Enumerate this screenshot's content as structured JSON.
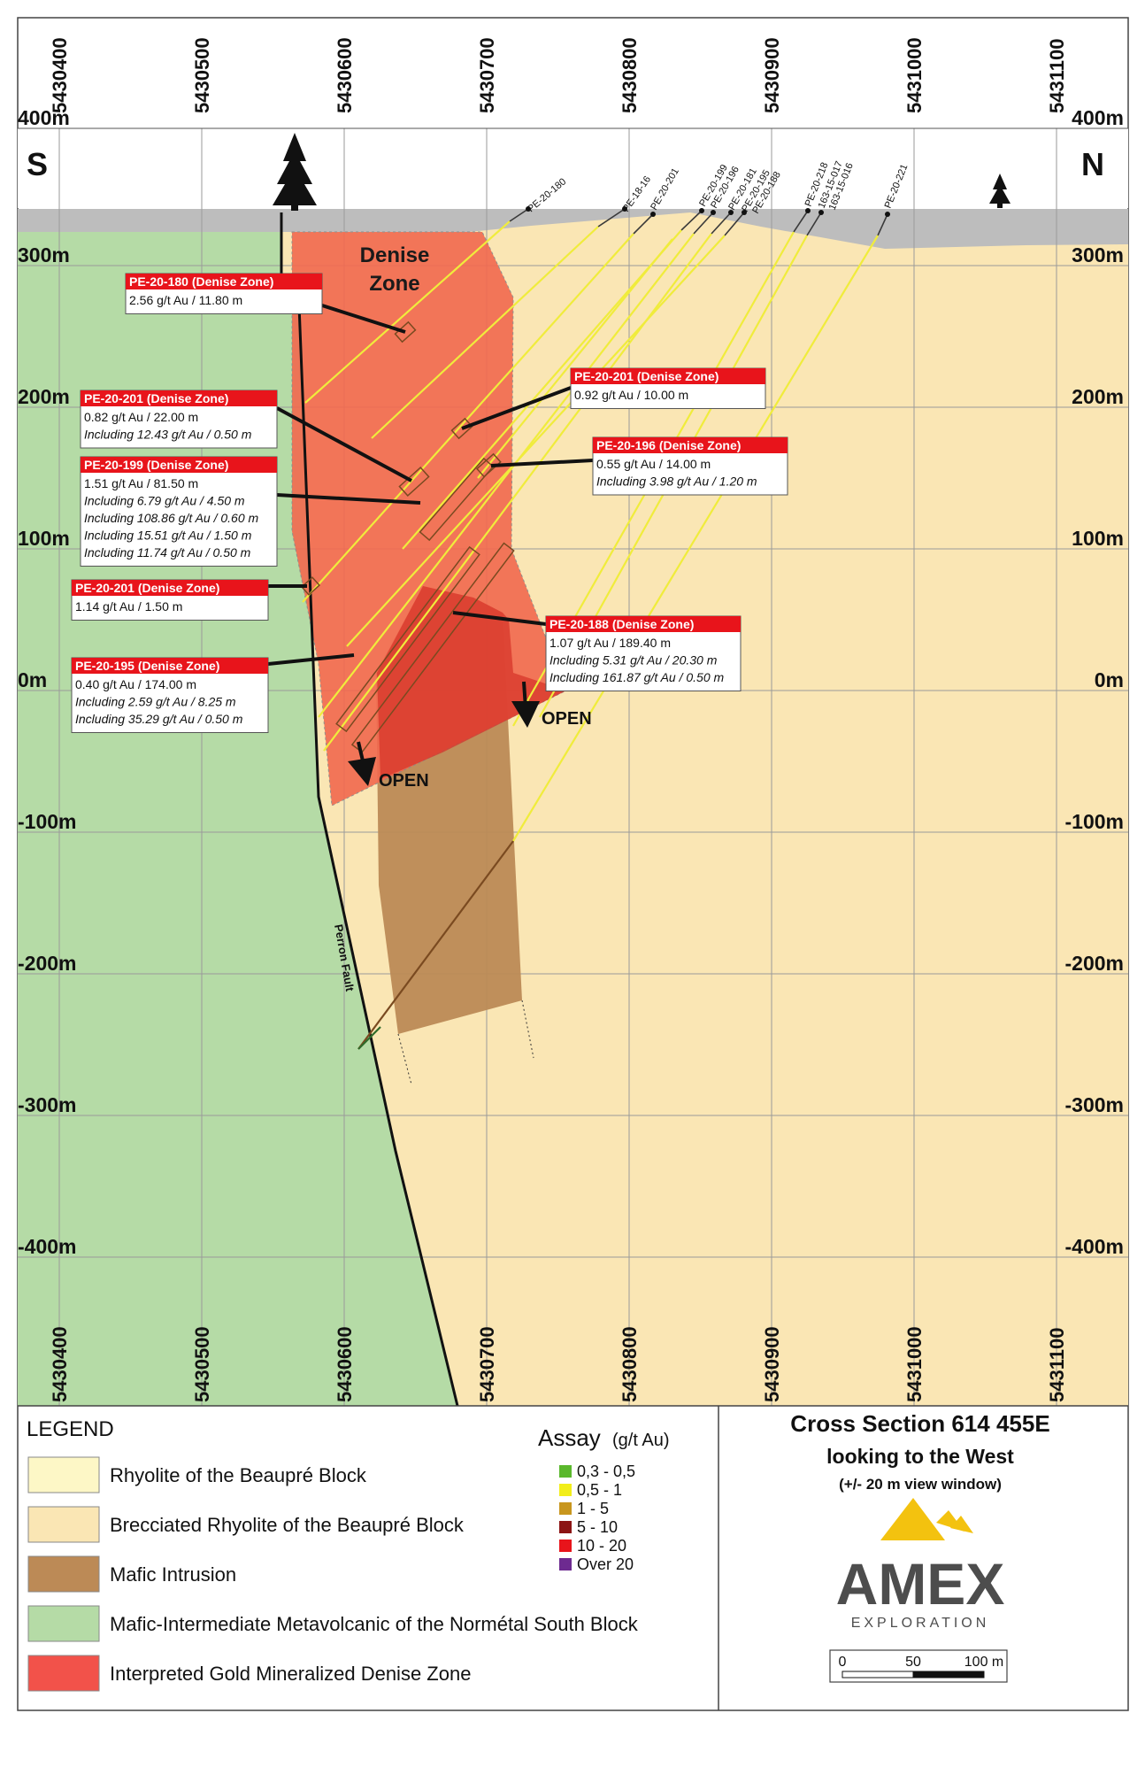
{
  "header": {
    "left_dir": "S",
    "right_dir": "N"
  },
  "eastings": [
    "5430400",
    "5430500",
    "5430600",
    "5430700",
    "5430800",
    "5430900",
    "5431000",
    "5431100"
  ],
  "elevations": [
    "400m",
    "300m",
    "200m",
    "100m",
    "0m",
    "-100m",
    "-200m",
    "-300m",
    "-400m"
  ],
  "zone_label": {
    "line1": "Denise",
    "line2": "Zone"
  },
  "fault_label": "Perron Fault",
  "open_labels": [
    "OPEN",
    "OPEN"
  ],
  "holes": [
    {
      "name": "PE-20-180"
    },
    {
      "name": "PE-18-16"
    },
    {
      "name": "PE-20-201"
    },
    {
      "name": "PE-20-199"
    },
    {
      "name": "PE-20-196"
    },
    {
      "name": "PE-20-181"
    },
    {
      "name": "PE-20-195"
    },
    {
      "name": "PE-20-188"
    },
    {
      "name": "PE-20-218"
    },
    {
      "name": "163-15-017"
    },
    {
      "name": "163-15-016"
    },
    {
      "name": "PE-20-221"
    }
  ],
  "labels": [
    {
      "title": "PE-20-180 (Denise Zone)",
      "lines": [
        {
          "text": "2.56 g/t Au / 11.80 m",
          "inc": false
        }
      ]
    },
    {
      "title": "PE-20-201 (Denise Zone)",
      "lines": [
        {
          "text": "0.82 g/t Au / 22.00 m",
          "inc": false
        },
        {
          "text": "Including 12.43 g/t Au / 0.50 m",
          "inc": true
        }
      ]
    },
    {
      "title": "PE-20-199 (Denise Zone)",
      "lines": [
        {
          "text": "1.51 g/t Au / 81.50 m",
          "inc": false
        },
        {
          "text": "Including 6.79 g/t Au / 4.50 m",
          "inc": true
        },
        {
          "text": "Including 108.86 g/t Au / 0.60 m",
          "inc": true
        },
        {
          "text": "Including 15.51 g/t Au / 1.50 m",
          "inc": true
        },
        {
          "text": "Including 11.74 g/t Au / 0.50 m",
          "inc": true
        }
      ]
    },
    {
      "title": "PE-20-201 (Denise Zone)",
      "lines": [
        {
          "text": "1.14 g/t Au / 1.50 m",
          "inc": false
        }
      ]
    },
    {
      "title": "PE-20-195 (Denise Zone)",
      "lines": [
        {
          "text": "0.40 g/t Au / 174.00 m",
          "inc": false
        },
        {
          "text": "Including 2.59 g/t Au / 8.25 m",
          "inc": true
        },
        {
          "text": "Including 35.29 g/t Au / 0.50 m",
          "inc": true
        }
      ]
    },
    {
      "title": "PE-20-201 (Denise Zone)",
      "lines": [
        {
          "text": "0.92 g/t Au / 10.00 m",
          "inc": false
        }
      ]
    },
    {
      "title": "PE-20-196 (Denise Zone)",
      "lines": [
        {
          "text": "0.55 g/t Au / 14.00 m",
          "inc": false
        },
        {
          "text": "Including 3.98 g/t Au / 1.20 m",
          "inc": true
        }
      ]
    },
    {
      "title": "PE-20-188 (Denise Zone)",
      "lines": [
        {
          "text": "1.07 g/t Au / 189.40 m",
          "inc": false
        },
        {
          "text": "Including 5.31 g/t Au / 20.30 m",
          "inc": true
        },
        {
          "text": "Including 161.87 g/t Au / 0.50 m",
          "inc": true
        }
      ]
    }
  ],
  "legend": {
    "title": "LEGEND",
    "items": [
      {
        "label": "Rhyolite of the Beaupré Block",
        "color": "#fdf7c6"
      },
      {
        "label": "Brecciated Rhyolite of the Beaupré Block",
        "color": "#fae6b4"
      },
      {
        "label": "Mafic Intrusion",
        "color": "#bc8a56"
      },
      {
        "label": "Mafic-Intermediate Metavolcanic of the Normétal South Block",
        "color": "#b5dba6"
      },
      {
        "label": "Interpreted Gold Mineralized Denise Zone",
        "color": "#f2524a"
      }
    ]
  },
  "assay": {
    "title": "Assay",
    "unit": "(g/t Au)",
    "items": [
      {
        "label": "0,3 - 0,5",
        "color": "#5ab82c"
      },
      {
        "label": "0,5 - 1",
        "color": "#f2ee1a"
      },
      {
        "label": "1 - 5",
        "color": "#c8961e"
      },
      {
        "label": "5 - 10",
        "color": "#8c1414"
      },
      {
        "label": "10 - 20",
        "color": "#e8141b"
      },
      {
        "label": "Over 20",
        "color": "#6d2a90"
      }
    ]
  },
  "title_block": {
    "line1": "Cross Section 614 455E",
    "line2": "looking to the West",
    "line3": "(+/- 20 m view window)"
  },
  "logo": {
    "name": "AMEX",
    "sub": "EXPLORATION",
    "color": "#4d4d4d",
    "accent": "#f3c20f"
  },
  "scale": {
    "labels": [
      "0",
      "50",
      "100 m"
    ]
  },
  "colors": {
    "rhyolite_breccia": "#fae6b4",
    "mafic_volcanic": "#b5dba6",
    "mafic_intrusion": "#bc8a56",
    "zone": "#f2694f",
    "zone_core": "#e33a2c",
    "overburden": "#bdbdbd",
    "drill": "#f0ec3c",
    "label_header": "#e8141b"
  }
}
